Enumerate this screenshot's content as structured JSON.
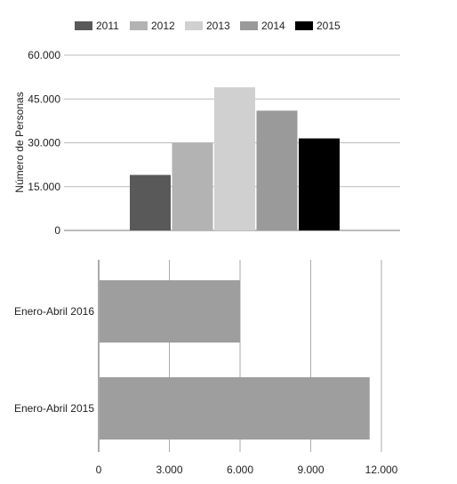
{
  "chart_data": [
    {
      "type": "bar",
      "orientation": "vertical",
      "categories": [
        ""
      ],
      "series": [
        {
          "name": "2011",
          "color": "#595959",
          "values": [
            19000
          ]
        },
        {
          "name": "2012",
          "color": "#b3b3b3",
          "values": [
            30000
          ]
        },
        {
          "name": "2013",
          "color": "#d0d0d0",
          "values": [
            49000
          ]
        },
        {
          "name": "2014",
          "color": "#9a9a9a",
          "values": [
            41000
          ]
        },
        {
          "name": "2015",
          "color": "#000000",
          "values": [
            31500
          ]
        }
      ],
      "ylabel": "Número de Personas",
      "ylim": [
        0,
        60000
      ],
      "yticks": [
        0,
        15000,
        30000,
        45000,
        60000
      ],
      "ytick_labels": [
        "0",
        "15.000",
        "30.000",
        "45.000",
        "60.000"
      ],
      "grid": "horizontal",
      "legend": "top"
    },
    {
      "type": "bar",
      "orientation": "horizontal",
      "categories": [
        "Enero-Abril 2016",
        "Enero-Abril 2015"
      ],
      "values": [
        6000,
        11500
      ],
      "color": "#9e9e9e",
      "xlim": [
        0,
        12000
      ],
      "xticks": [
        0,
        3000,
        6000,
        9000,
        12000
      ],
      "xtick_labels": [
        "0",
        "3.000",
        "6.000",
        "9.000",
        "12.000"
      ],
      "grid": "vertical",
      "legend": "none"
    }
  ]
}
